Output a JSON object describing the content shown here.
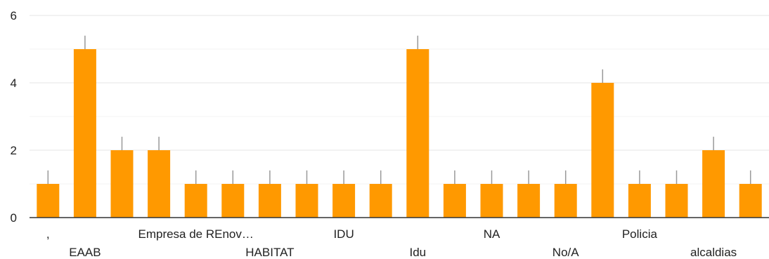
{
  "chart_data": {
    "type": "bar",
    "title": "",
    "xlabel": "",
    "ylabel": "",
    "ylim": [
      0,
      6
    ],
    "yticks": [
      "0",
      "2",
      "4",
      "6"
    ],
    "grid": true,
    "bar_color": "#ff9900",
    "error_bar_color": "#999999",
    "error_bar_extent": 0.4,
    "categories": [
      ",",
      "EAAB",
      "",
      "",
      "Empresa de REnov…",
      "",
      "HABITAT",
      "",
      "IDU",
      "",
      "Idu",
      "",
      "NA",
      "",
      "No/A",
      "",
      "Policia",
      "",
      "alcaldias",
      ""
    ],
    "values": [
      1,
      5,
      2,
      2,
      1,
      1,
      1,
      1,
      1,
      1,
      5,
      1,
      1,
      1,
      1,
      4,
      1,
      1,
      2,
      1
    ]
  }
}
